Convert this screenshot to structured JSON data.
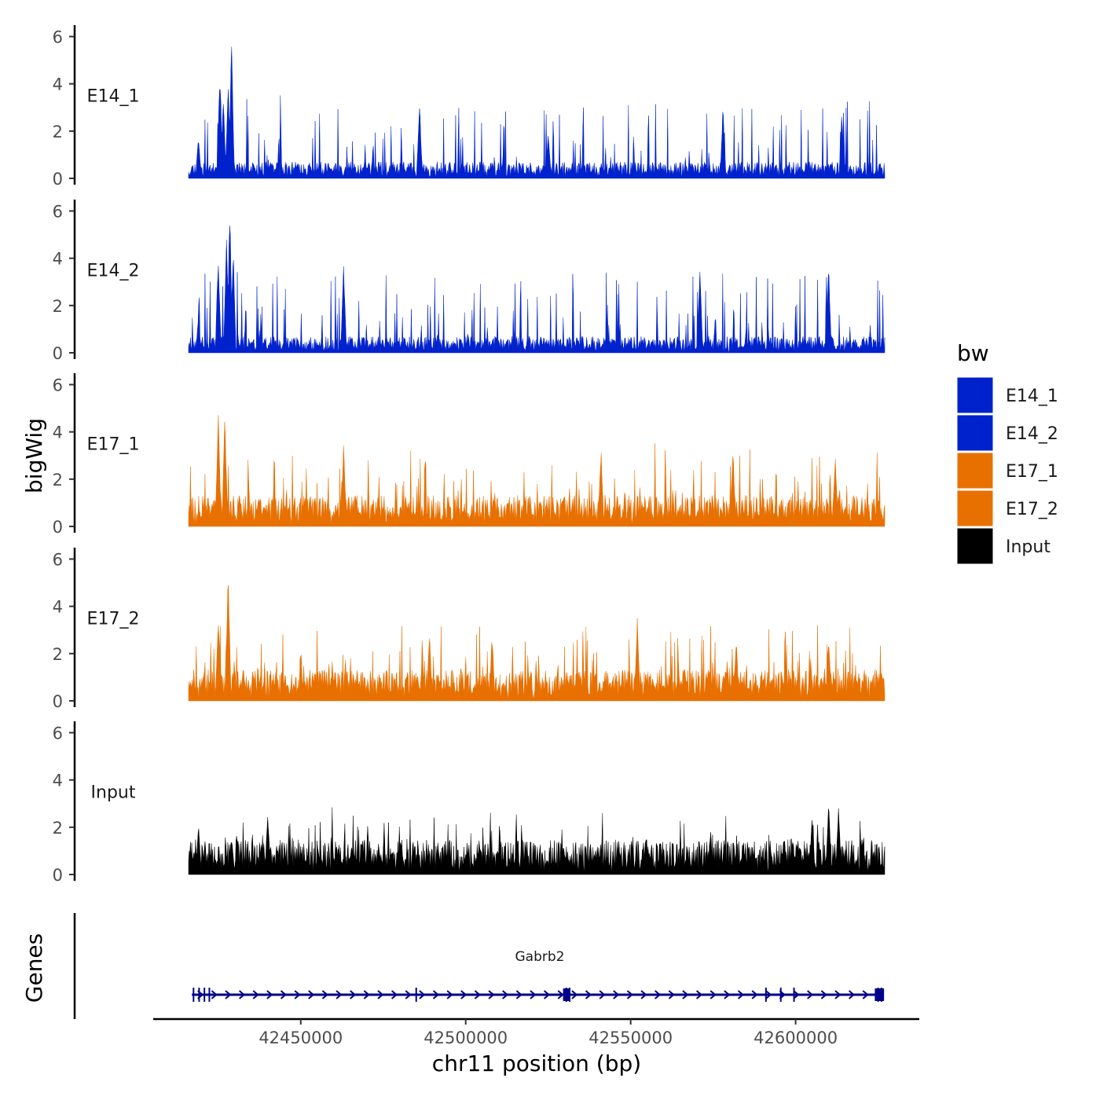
{
  "chart_data": {
    "type": "area",
    "title": "",
    "xlabel": "chr11 position (bp)",
    "ylabel": "bigWig",
    "gene_track_label": "Genes",
    "xlim": [
      42416000,
      42627000
    ],
    "x_ticks": [
      42450000,
      42500000,
      42550000,
      42600000
    ],
    "x_tick_labels": [
      "42450000",
      "42500000",
      "42550000",
      "42600000"
    ],
    "ylim": [
      0,
      6.5
    ],
    "y_ticks": [
      0,
      2,
      4,
      6
    ],
    "y_tick_labels": [
      "0",
      "2",
      "4",
      "6"
    ],
    "legend": {
      "title": "bw",
      "position": "right",
      "entries": [
        {
          "label": "E14_1",
          "color": "#0022CC"
        },
        {
          "label": "E14_2",
          "color": "#0022CC"
        },
        {
          "label": "E17_1",
          "color": "#E87000"
        },
        {
          "label": "E17_2",
          "color": "#E87000"
        },
        {
          "label": "Input",
          "color": "#000000"
        }
      ]
    },
    "tracks": [
      {
        "name": "E14_1",
        "color": "#0022CC",
        "seed": 11,
        "base": 0.45,
        "spike": 2.9,
        "peaks": [
          [
            42419000,
            1.9
          ],
          [
            42425500,
            4.8
          ],
          [
            42428000,
            4.2
          ],
          [
            42429000,
            5.9
          ],
          [
            42426500,
            3.6
          ],
          [
            42486000,
            3.3
          ],
          [
            42525000,
            2.1
          ],
          [
            42578000,
            3.2
          ],
          [
            42614000,
            2.9
          ]
        ]
      },
      {
        "name": "E14_2",
        "color": "#0022CC",
        "seed": 23,
        "base": 0.45,
        "spike": 2.9,
        "peaks": [
          [
            42419000,
            1.6
          ],
          [
            42425000,
            4.3
          ],
          [
            42427500,
            5.3
          ],
          [
            42428500,
            6.2
          ],
          [
            42429500,
            4.6
          ],
          [
            42463000,
            3.8
          ],
          [
            42571000,
            3.8
          ],
          [
            42610000,
            3.8
          ]
        ]
      },
      {
        "name": "E17_1",
        "color": "#E87000",
        "seed": 37,
        "base": 0.85,
        "spike": 2.2,
        "peaks": [
          [
            42422000,
            1.1
          ],
          [
            42425000,
            5.0
          ],
          [
            42427000,
            4.9
          ],
          [
            42463000,
            3.5
          ],
          [
            42541000,
            3.4
          ],
          [
            42581000,
            3.5
          ],
          [
            42612000,
            3.1
          ]
        ]
      },
      {
        "name": "E17_2",
        "color": "#E87000",
        "seed": 51,
        "base": 0.85,
        "spike": 2.2,
        "peaks": [
          [
            42420000,
            0.9
          ],
          [
            42425000,
            3.8
          ],
          [
            42428000,
            5.6
          ],
          [
            42489000,
            3.1
          ],
          [
            42508000,
            2.9
          ],
          [
            42552000,
            3.5
          ],
          [
            42582000,
            2.7
          ],
          [
            42610000,
            2.8
          ]
        ]
      },
      {
        "name": "Input",
        "color": "#000000",
        "seed": 73,
        "base": 0.95,
        "spike": 1.5,
        "peaks": [
          [
            42419000,
            2.2
          ],
          [
            42440000,
            2.7
          ],
          [
            42605000,
            2.6
          ],
          [
            42610000,
            3.1
          ],
          [
            42613000,
            3.0
          ]
        ]
      }
    ],
    "genes": [
      {
        "name": "Gabrb2",
        "strand": "+",
        "start": 42417000,
        "end": 42626000,
        "color": "#00008B",
        "exons": [
          42417500,
          42419200,
          42420800,
          42422300,
          42485000,
          42530500,
          42531500,
          42591000,
          42595500,
          42599500,
          42625000,
          42626000
        ],
        "boxes": [
          [
            42529500,
            42531500
          ],
          [
            42624000,
            42626800
          ]
        ]
      }
    ]
  }
}
